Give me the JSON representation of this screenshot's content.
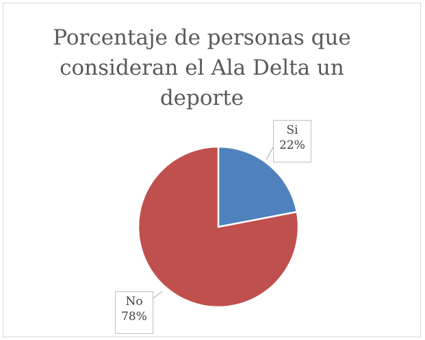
{
  "chart_data": {
    "type": "pie",
    "title": "Porcentaje de personas que consideran el Ala Delta un deporte",
    "categories": [
      "Si",
      "No"
    ],
    "values": [
      22,
      78
    ],
    "value_labels": [
      "22%",
      "78%"
    ],
    "colors": [
      "#4f81bd",
      "#c0504d"
    ],
    "legend": "none"
  }
}
